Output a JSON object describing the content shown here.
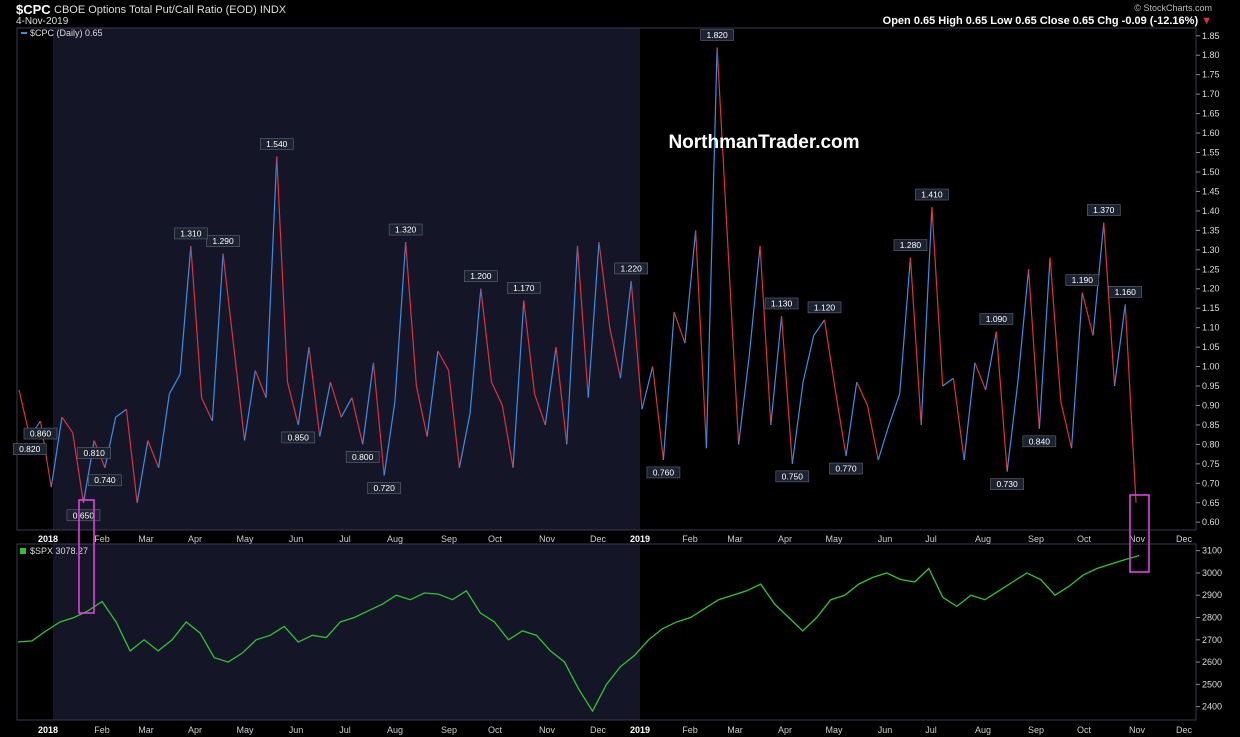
{
  "header": {
    "symbol": "$CPC",
    "title": "CBOE Options Total Put/Call Ratio (EOD)  INDX",
    "date": "4-Nov-2019",
    "brand": "© StockCharts.com",
    "ohlc": "Open 0.65  High 0.65  Low 0.65  Close 0.65  Chg -0.09 (-12.16%)",
    "chg_marker": "▼"
  },
  "watermark": "NorthmanTrader.com",
  "colors": {
    "cpc_up": "#3a8ee6",
    "cpc_down": "#e0303a",
    "spx": "#2fc42f",
    "highlight": "#e040e0",
    "shade": "#151528"
  },
  "chart_data": [
    {
      "type": "line",
      "legend": "$CPC (Daily) 0.65",
      "ylim": [
        0.58,
        1.87
      ],
      "y_ticks": [
        "1.85",
        "1.80",
        "1.75",
        "1.70",
        "1.65",
        "1.60",
        "1.55",
        "1.50",
        "1.45",
        "1.40",
        "1.35",
        "1.30",
        "1.25",
        "1.20",
        "1.15",
        "1.10",
        "1.05",
        "1.00",
        "0.95",
        "0.90",
        "0.85",
        "0.80",
        "0.75",
        "0.70",
        "0.65",
        "0.60"
      ],
      "x_labels": [
        "2018",
        "Feb",
        "Mar",
        "Apr",
        "May",
        "Jun",
        "Jul",
        "Aug",
        "Sep",
        "Oct",
        "Nov",
        "Dec",
        "2019",
        "Feb",
        "Mar",
        "Apr",
        "May",
        "Jun",
        "Jul",
        "Aug",
        "Sep",
        "Oct",
        "Nov",
        "Dec"
      ],
      "series": [
        {
          "values": [
            0.94,
            0.82,
            0.86,
            0.69,
            0.87,
            0.83,
            0.65,
            0.81,
            0.74,
            0.87,
            0.89,
            0.65,
            0.81,
            0.74,
            0.93,
            0.98,
            1.31,
            0.92,
            0.86,
            1.29,
            1.05,
            0.81,
            0.99,
            0.92,
            1.54,
            0.96,
            0.85,
            1.05,
            0.82,
            0.96,
            0.87,
            0.92,
            0.8,
            1.01,
            0.72,
            0.91,
            1.32,
            0.95,
            0.82,
            1.04,
            0.99,
            0.74,
            0.88,
            1.2,
            0.96,
            0.9,
            0.74,
            1.17,
            0.93,
            0.85,
            1.05,
            0.8,
            1.31,
            0.92,
            1.32,
            1.1,
            0.97,
            1.22,
            0.89,
            1.0,
            0.76,
            1.14,
            1.06,
            1.35,
            0.79,
            1.82,
            1.31,
            0.8,
            1.03,
            1.31,
            0.85,
            1.13,
            0.75,
            0.96,
            1.08,
            1.12,
            0.94,
            0.77,
            0.96,
            0.9,
            0.76,
            0.85,
            0.93,
            1.28,
            0.85,
            1.41,
            0.95,
            0.97,
            0.76,
            1.01,
            0.94,
            1.09,
            0.73,
            0.96,
            1.25,
            0.84,
            1.28,
            0.91,
            0.79,
            1.19,
            1.08,
            1.37,
            0.95,
            1.16,
            0.65
          ]
        },
        {
          "name": "$SPX",
          "values": [
            2690,
            2695,
            2740,
            2780,
            2800,
            2830,
            2872,
            2780,
            2650,
            2700,
            2650,
            2700,
            2780,
            2730,
            2620,
            2600,
            2640,
            2700,
            2720,
            2760,
            2690,
            2720,
            2710,
            2780,
            2800,
            2830,
            2860,
            2900,
            2880,
            2910,
            2905,
            2880,
            2920,
            2820,
            2780,
            2700,
            2740,
            2720,
            2650,
            2600,
            2480,
            2380,
            2500,
            2580,
            2630,
            2700,
            2750,
            2780,
            2800,
            2840,
            2880,
            2900,
            2920,
            2950,
            2860,
            2800,
            2740,
            2800,
            2880,
            2900,
            2950,
            2980,
            3000,
            2970,
            2960,
            3020,
            2890,
            2850,
            2900,
            2880,
            2920,
            2960,
            3000,
            2970,
            2900,
            2940,
            2990,
            3020,
            3040,
            3060,
            3078
          ]
        }
      ]
    },
    {
      "type": "line",
      "legend": "$SPX 3078.27",
      "ylim": [
        2340,
        3130
      ],
      "y_ticks": [
        "3100",
        "3000",
        "2900",
        "2800",
        "2700",
        "2600",
        "2500",
        "2400"
      ],
      "x_labels": [
        "2018",
        "Feb",
        "Mar",
        "Apr",
        "May",
        "Jun",
        "Jul",
        "Aug",
        "Sep",
        "Oct",
        "Nov",
        "Dec",
        "2019",
        "Feb",
        "Mar",
        "Apr",
        "May",
        "Jun",
        "Jul",
        "Aug",
        "Sep",
        "Oct",
        "Nov",
        "Dec"
      ],
      "annotations": [
        "1.820",
        "1.540",
        "1.290",
        "0.860",
        "0.810",
        "0.820",
        "0.650",
        "0.720",
        "0.740",
        "1.200",
        "1.170",
        "1.320",
        "1.220",
        "0.800",
        "1.310",
        "1.130",
        "0.750",
        "1.120",
        "0.770",
        "1.410",
        "0.850",
        "0.760",
        "1.090",
        "0.730",
        "1.280",
        "0.840",
        "1.190",
        "1.370",
        "1.160"
      ]
    }
  ]
}
